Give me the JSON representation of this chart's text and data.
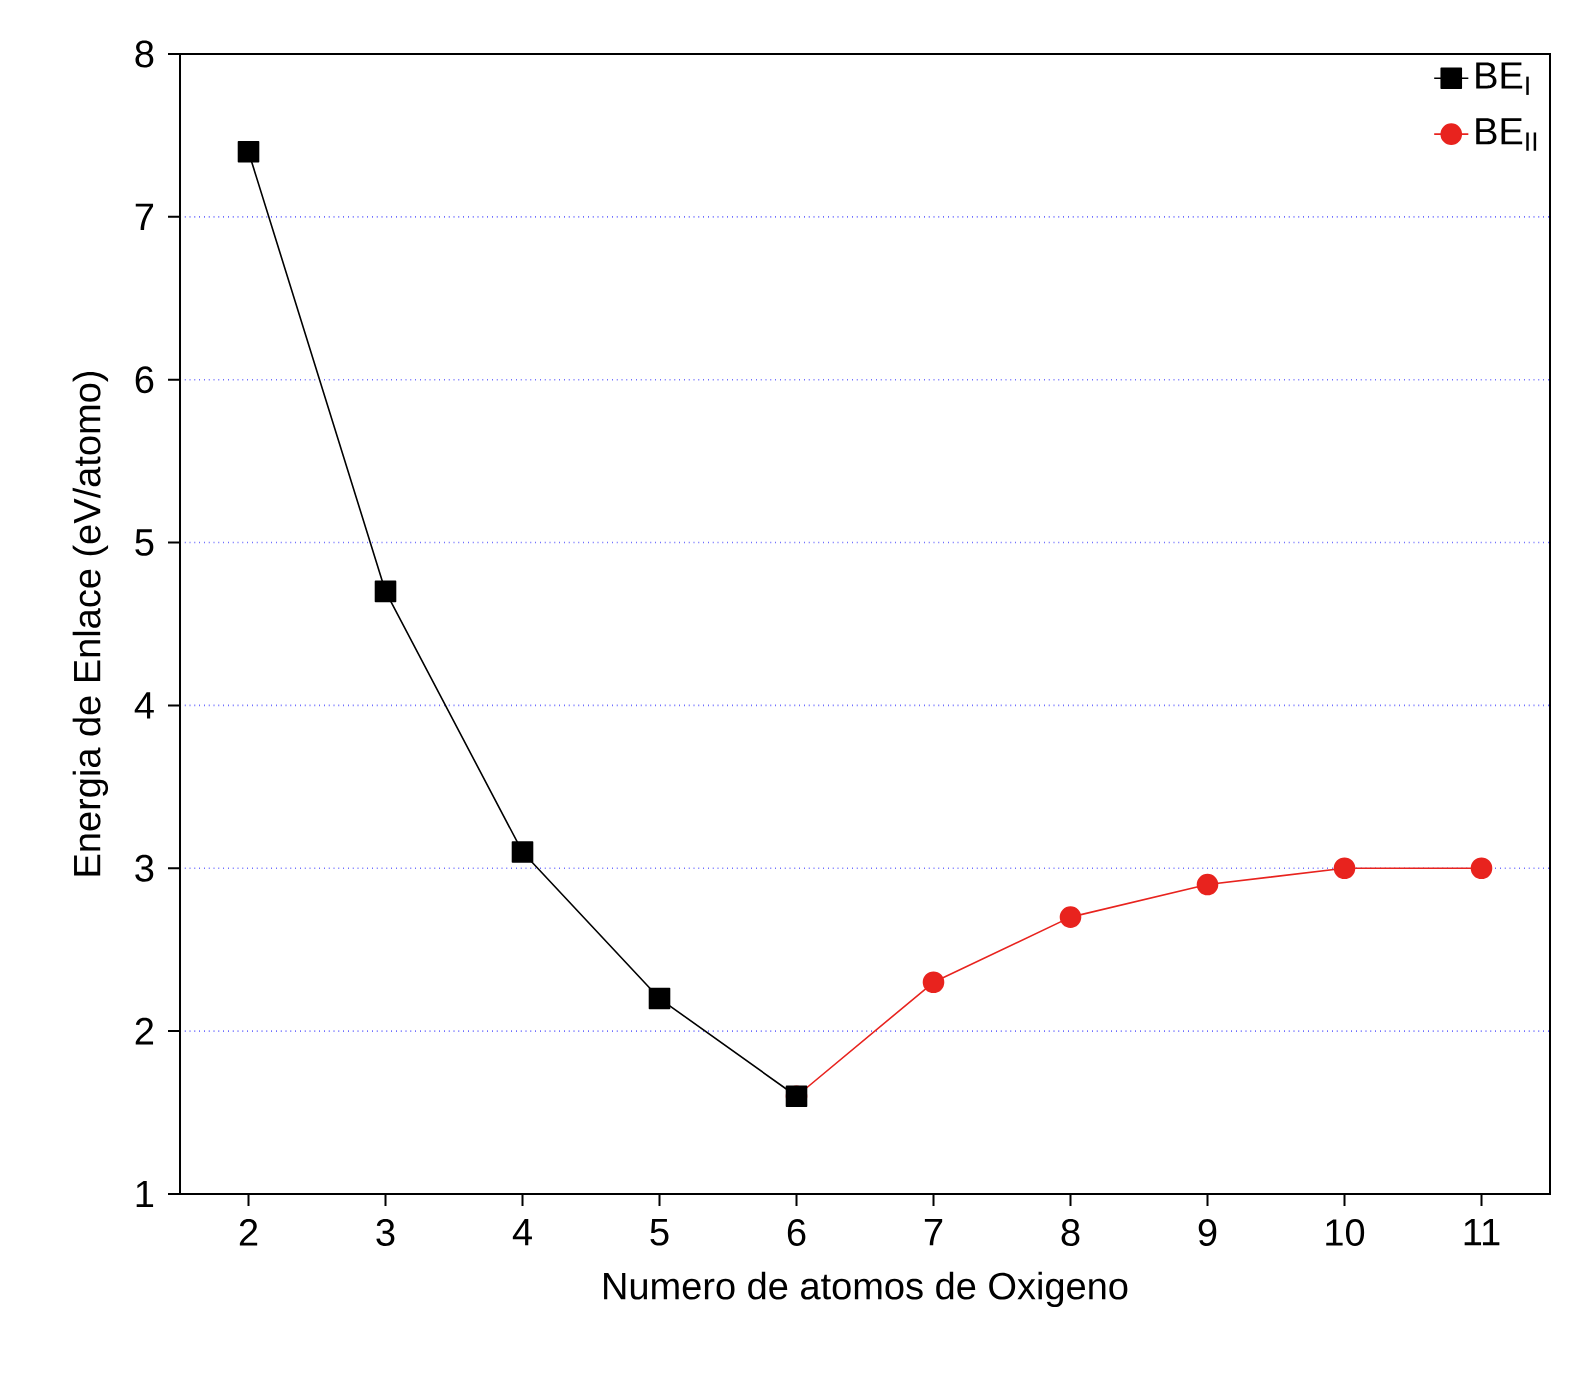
{
  "chart_data": {
    "type": "line",
    "xlabel": "Numero de atomos de Oxigeno",
    "ylabel": "Energia de Enlace (eV/atomo)",
    "xlim": [
      1.5,
      11.5
    ],
    "ylim": [
      1,
      8
    ],
    "xticks": [
      2,
      3,
      4,
      5,
      6,
      7,
      8,
      9,
      10,
      11
    ],
    "yticks": [
      1,
      2,
      3,
      4,
      5,
      6,
      7,
      8
    ],
    "grid": "y",
    "legend": "top right",
    "line_style": "solid",
    "series": [
      {
        "name": "BE$_{I}$",
        "color": "#000000",
        "marker": "square",
        "x": [
          2,
          3,
          4,
          5,
          6
        ],
        "values": [
          7.4,
          4.7,
          3.1,
          2.2,
          1.6
        ]
      },
      {
        "name": "BE$_{II}$",
        "color": "#e8231e",
        "marker": "circle",
        "x": [
          6,
          7,
          8,
          9,
          10,
          11
        ],
        "values": [
          1.6,
          2.3,
          2.7,
          2.9,
          3.0,
          3.0
        ]
      }
    ]
  }
}
